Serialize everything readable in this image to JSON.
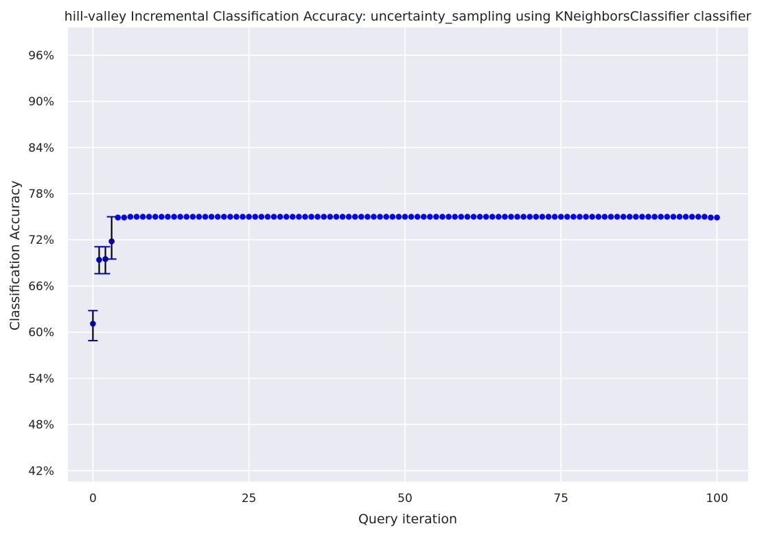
{
  "chart_data": {
    "type": "scatter",
    "title": "hill-valley Incremental Classification Accuracy: uncertainty_sampling using KNeighborsClassifier classifier",
    "xlabel": "Query iteration",
    "ylabel": "Classification Accuracy",
    "xlim": [
      -4,
      105
    ],
    "ylim": [
      40.6,
      99.6
    ],
    "x_ticks": [
      0,
      25,
      50,
      75,
      100
    ],
    "x_tick_labels": [
      "0",
      "25",
      "50",
      "75",
      "100"
    ],
    "y_ticks": [
      42,
      48,
      54,
      60,
      66,
      72,
      78,
      84,
      90,
      96
    ],
    "y_tick_labels": [
      "42%",
      "48%",
      "54%",
      "60%",
      "66%",
      "72%",
      "78%",
      "84%",
      "90%",
      "96%"
    ],
    "grid": true,
    "background": "#eaeaf2",
    "marker_color": "#0000ff",
    "errorbar_color": "#000000",
    "cap_color": "#0000cc",
    "series": [
      {
        "x": [
          0,
          1,
          2,
          3,
          4,
          5,
          6,
          7,
          8,
          9,
          10,
          11,
          12,
          13,
          14,
          15,
          16,
          17,
          18,
          19,
          20,
          21,
          22,
          23,
          24,
          25,
          26,
          27,
          28,
          29,
          30,
          31,
          32,
          33,
          34,
          35,
          36,
          37,
          38,
          39,
          40,
          41,
          42,
          43,
          44,
          45,
          46,
          47,
          48,
          49,
          50,
          51,
          52,
          53,
          54,
          55,
          56,
          57,
          58,
          59,
          60,
          61,
          62,
          63,
          64,
          65,
          66,
          67,
          68,
          69,
          70,
          71,
          72,
          73,
          74,
          75,
          76,
          77,
          78,
          79,
          80,
          81,
          82,
          83,
          84,
          85,
          86,
          87,
          88,
          89,
          90,
          91,
          92,
          93,
          94,
          95,
          96,
          97,
          98,
          99,
          100
        ],
        "y": [
          61.1,
          69.4,
          69.5,
          71.8,
          74.9,
          74.9,
          75.0,
          75.0,
          75.0,
          75.0,
          75.0,
          75.0,
          75.0,
          75.0,
          75.0,
          75.0,
          75.0,
          75.0,
          75.0,
          75.0,
          75.0,
          75.0,
          75.0,
          75.0,
          75.0,
          75.0,
          75.0,
          75.0,
          75.0,
          75.0,
          75.0,
          75.0,
          75.0,
          75.0,
          75.0,
          75.0,
          75.0,
          75.0,
          75.0,
          75.0,
          75.0,
          75.0,
          75.0,
          75.0,
          75.0,
          75.0,
          75.0,
          75.0,
          75.0,
          75.0,
          75.0,
          75.0,
          75.0,
          75.0,
          75.0,
          75.0,
          75.0,
          75.0,
          75.0,
          75.0,
          75.0,
          75.0,
          75.0,
          75.0,
          75.0,
          75.0,
          75.0,
          75.0,
          75.0,
          75.0,
          75.0,
          75.0,
          75.0,
          75.0,
          75.0,
          75.0,
          75.0,
          75.0,
          75.0,
          75.0,
          75.0,
          75.0,
          75.0,
          75.0,
          75.0,
          75.0,
          75.0,
          75.0,
          75.0,
          75.0,
          75.0,
          75.0,
          75.0,
          75.0,
          75.0,
          75.0,
          75.0,
          75.0,
          75.0,
          74.9,
          74.9
        ],
        "errors": {
          "0": [
            58.9,
            62.8
          ],
          "1": [
            67.6,
            71.1
          ],
          "2": [
            67.6,
            71.1
          ],
          "3": [
            69.5,
            75.0
          ]
        }
      }
    ]
  }
}
